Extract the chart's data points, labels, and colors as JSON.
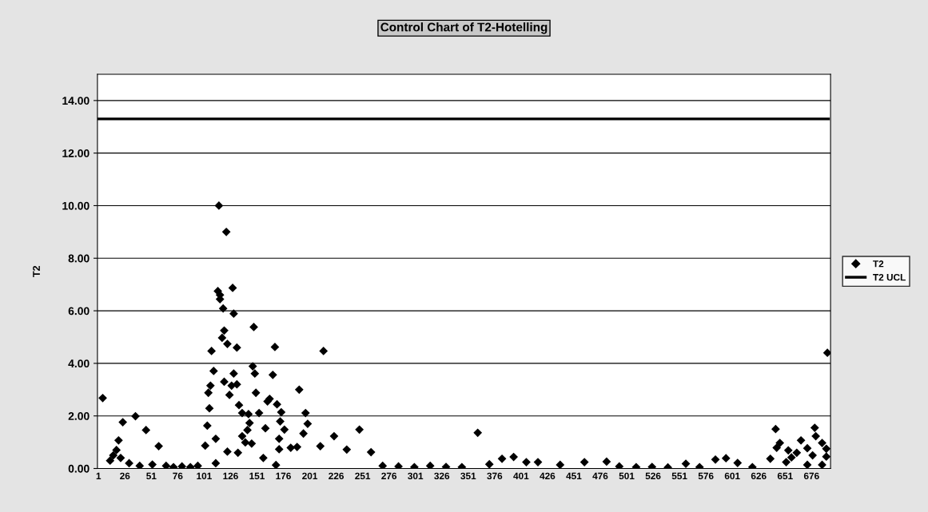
{
  "chart_data": {
    "type": "scatter",
    "title": "Control Chart of T2-Hotelling",
    "ylabel": "T2",
    "xlim": [
      0,
      694
    ],
    "xticks": [
      1,
      26,
      51,
      76,
      101,
      126,
      151,
      176,
      201,
      226,
      251,
      276,
      301,
      326,
      351,
      376,
      401,
      426,
      451,
      476,
      501,
      526,
      551,
      576,
      601,
      626,
      651,
      676
    ],
    "ylim": [
      0,
      15
    ],
    "yticks": [
      {
        "value": 0,
        "label": "0.00"
      },
      {
        "value": 2,
        "label": "2.00"
      },
      {
        "value": 4,
        "label": "4.00"
      },
      {
        "value": 6,
        "label": "6.00"
      },
      {
        "value": 8,
        "label": "8.00"
      },
      {
        "value": 10,
        "label": "10.00"
      },
      {
        "value": 12,
        "label": "12.00"
      },
      {
        "value": 14,
        "label": "14.00"
      }
    ],
    "grid": "y",
    "legend": "right",
    "marker": "diamond",
    "series": [
      {
        "name": "T2",
        "color": "#000000",
        "x": [
          5,
          12,
          15,
          18,
          20,
          22,
          24,
          30,
          36,
          40,
          46,
          52,
          58,
          65,
          72,
          80,
          88,
          95,
          102,
          104,
          105,
          106,
          107,
          108,
          110,
          112,
          112,
          114,
          115,
          116,
          116,
          118,
          119,
          120,
          120,
          122,
          123,
          123,
          125,
          127,
          128,
          129,
          129,
          132,
          132,
          133,
          134,
          137,
          137,
          140,
          142,
          143,
          144,
          146,
          147,
          148,
          149,
          150,
          153,
          157,
          159,
          161,
          163,
          166,
          168,
          169,
          170,
          172,
          172,
          173,
          174,
          177,
          183,
          189,
          191,
          195,
          197,
          199,
          211,
          214,
          224,
          236,
          248,
          259,
          270,
          285,
          300,
          315,
          330,
          345,
          360,
          371,
          383,
          394,
          406,
          417,
          438,
          461,
          482,
          494,
          510,
          525,
          540,
          557,
          570,
          585,
          595,
          606,
          620,
          637,
          642,
          643,
          646,
          652,
          654,
          657,
          662,
          666,
          672,
          672,
          677,
          679,
          680,
          686,
          686,
          690,
          690,
          691
        ],
        "values": [
          2.68,
          0.3,
          0.5,
          0.7,
          1.07,
          0.4,
          1.76,
          0.2,
          1.99,
          0.1,
          1.46,
          0.15,
          0.85,
          0.1,
          0.05,
          0.08,
          0.05,
          0.1,
          0.87,
          1.63,
          2.88,
          2.29,
          3.15,
          4.47,
          3.71,
          1.13,
          0.2,
          6.75,
          10.0,
          6.6,
          6.44,
          4.97,
          6.09,
          5.25,
          3.3,
          9.0,
          4.74,
          0.64,
          2.8,
          3.15,
          6.87,
          5.89,
          3.61,
          4.6,
          3.2,
          0.6,
          2.41,
          2.11,
          1.23,
          0.99,
          1.46,
          2.07,
          1.73,
          0.95,
          3.89,
          5.38,
          3.61,
          2.88,
          2.11,
          0.4,
          1.53,
          2.55,
          2.65,
          3.56,
          4.62,
          0.13,
          2.44,
          1.13,
          0.73,
          1.79,
          2.14,
          1.48,
          0.79,
          0.82,
          3.0,
          1.33,
          2.11,
          1.7,
          0.85,
          4.47,
          1.23,
          0.72,
          1.48,
          0.62,
          0.1,
          0.08,
          0.05,
          0.1,
          0.06,
          0.05,
          1.36,
          0.16,
          0.37,
          0.44,
          0.24,
          0.24,
          0.14,
          0.24,
          0.26,
          0.08,
          0.05,
          0.06,
          0.04,
          0.18,
          0.05,
          0.34,
          0.39,
          0.21,
          0.05,
          0.37,
          1.5,
          0.79,
          0.97,
          0.24,
          0.69,
          0.42,
          0.6,
          1.07,
          0.77,
          0.14,
          0.5,
          1.55,
          1.23,
          0.97,
          0.14,
          0.75,
          0.45,
          4.4
        ]
      },
      {
        "name": "T2 UCL",
        "type": "line",
        "color": "#000000",
        "marker": "none",
        "x": [
          1,
          692
        ],
        "values": [
          13.3,
          13.3
        ]
      }
    ]
  }
}
